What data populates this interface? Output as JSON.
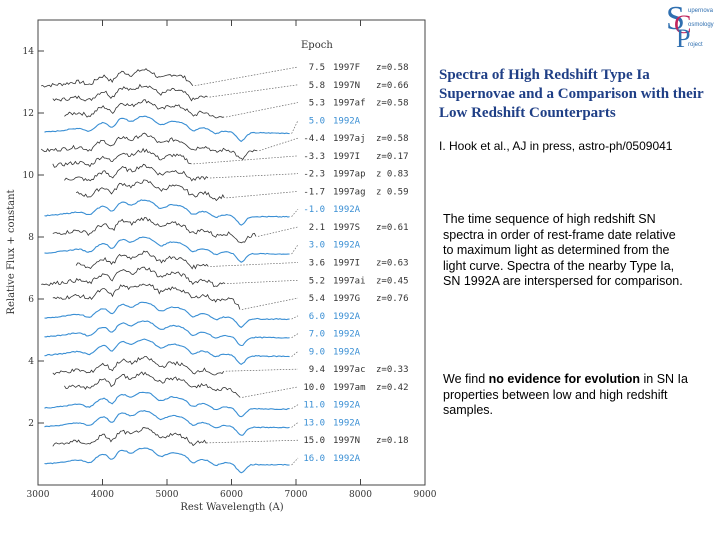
{
  "logo": {
    "letters": [
      "S",
      "C",
      "P"
    ],
    "words": [
      "upernova",
      "osmology",
      "roject"
    ]
  },
  "title": "Spectra of High Redshift Type Ia Supernovae and a Comparison with their Low Redshift Counterparts",
  "citation": "I. Hook et al., AJ in press, astro-ph/0509041",
  "description": "The time sequence of high redshift SN spectra in order of rest-frame date relative to maximum light as determined from the light curve. Spectra of the nearby Type Ia, SN 1992A are interspersed for comparison.",
  "conclusion": {
    "pre": "We find ",
    "bold": "no evidence for evolution",
    "post": " in SN Ia properties between low and high redshift samples."
  },
  "chart_data": {
    "type": "line",
    "xlabel": "Rest Wavelength (A)",
    "ylabel": "Relative Flux + constant",
    "xlim": [
      3000,
      9000
    ],
    "ylim": [
      0,
      15
    ],
    "xticks": [
      3000,
      4000,
      5000,
      6000,
      7000,
      8000,
      9000
    ],
    "yticks": [
      2,
      4,
      6,
      8,
      10,
      12,
      14
    ],
    "legend_header": "Epoch",
    "colors": {
      "high_z": "#333333",
      "sn1992a": "#3a8fd4",
      "leader": "#666666"
    },
    "series": [
      {
        "epoch": "7.5",
        "name": "1997F",
        "z": "z=0.58",
        "offset": 13.0,
        "low_z": false
      },
      {
        "epoch": "5.8",
        "name": "1997N",
        "z": "z=0.66",
        "offset": 12.5,
        "low_z": false
      },
      {
        "epoch": "5.3",
        "name": "1997af",
        "z": "z=0.58",
        "offset": 12.0,
        "low_z": false
      },
      {
        "epoch": "5.0",
        "name": "1992A",
        "z": "",
        "offset": 11.5,
        "low_z": true
      },
      {
        "epoch": "-4.4",
        "name": "1997aj",
        "z": "z=0.58",
        "offset": 10.9,
        "low_z": false
      },
      {
        "epoch": "-3.3",
        "name": "1997I",
        "z": "z=0.17",
        "offset": 10.4,
        "low_z": false
      },
      {
        "epoch": "-2.3",
        "name": "1997ap",
        "z": "z 0.83",
        "offset": 9.9,
        "low_z": false
      },
      {
        "epoch": "-1.7",
        "name": "1997ag",
        "z": "z 0.59",
        "offset": 9.4,
        "low_z": false
      },
      {
        "epoch": "-1.0",
        "name": "1992A",
        "z": "",
        "offset": 8.8,
        "low_z": true
      },
      {
        "epoch": "2.1",
        "name": "1997S",
        "z": "z=0.61",
        "offset": 8.2,
        "low_z": false
      },
      {
        "epoch": "3.0",
        "name": "1992A",
        "z": "",
        "offset": 7.6,
        "low_z": true
      },
      {
        "epoch": "3.6",
        "name": "1997I",
        "z": "z=0.63",
        "offset": 7.1,
        "low_z": false
      },
      {
        "epoch": "5.2",
        "name": "1997ai",
        "z": "z=0.45",
        "offset": 6.6,
        "low_z": false
      },
      {
        "epoch": "5.4",
        "name": "1997G",
        "z": "z=0.76",
        "offset": 6.1,
        "low_z": false
      },
      {
        "epoch": "6.0",
        "name": "1992A",
        "z": "",
        "offset": 5.5,
        "low_z": true
      },
      {
        "epoch": "7.0",
        "name": "1992A",
        "z": "",
        "offset": 4.9,
        "low_z": true
      },
      {
        "epoch": "9.0",
        "name": "1992A",
        "z": "",
        "offset": 4.3,
        "low_z": true
      },
      {
        "epoch": "9.4",
        "name": "1997ac",
        "z": "z=0.33",
        "offset": 3.7,
        "low_z": false
      },
      {
        "epoch": "10.0",
        "name": "1997am",
        "z": "z=0.42",
        "offset": 3.2,
        "low_z": false
      },
      {
        "epoch": "11.0",
        "name": "1992A",
        "z": "",
        "offset": 2.6,
        "low_z": true
      },
      {
        "epoch": "13.0",
        "name": "1992A",
        "z": "",
        "offset": 2.0,
        "low_z": true
      },
      {
        "epoch": "15.0",
        "name": "1997N",
        "z": "z=0.18",
        "offset": 1.4,
        "low_z": false
      },
      {
        "epoch": "16.0",
        "name": "1992A",
        "z": "",
        "offset": 0.8,
        "low_z": true
      }
    ]
  }
}
